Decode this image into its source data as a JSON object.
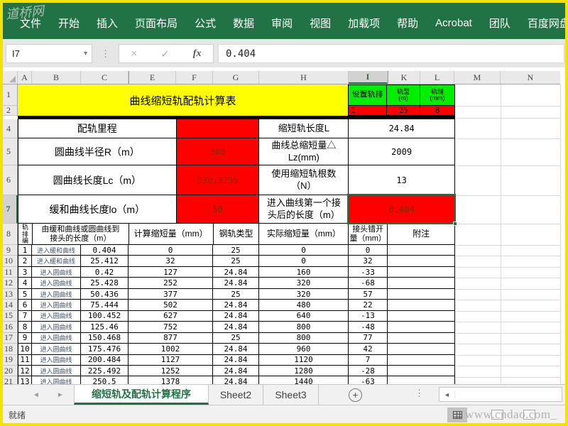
{
  "colors": {
    "excel_green": "#217346",
    "fill_green": "#00EE00",
    "fill_red": "#FF0000",
    "fill_yellow": "#FFFF00",
    "red_cell_text": "#7B2D00"
  },
  "watermarks": {
    "top_left": "道桥网",
    "bottom_right": "www.cndao.com_"
  },
  "menu": {
    "items": [
      "文件",
      "开始",
      "插入",
      "页面布局",
      "公式",
      "数据",
      "审阅",
      "视图",
      "加载项",
      "帮助",
      "Acrobat",
      "团队",
      "百度网盘"
    ]
  },
  "formula_bar": {
    "name_box": "I7",
    "value": "0.404"
  },
  "icons": {
    "dropdown": "▾",
    "cancel": "×",
    "enter": "✓",
    "fx": "fx",
    "dots": "⋮",
    "tab_prev": "◄",
    "tab_next": "►",
    "add_sheet": "+",
    "scroll_left": "◄"
  },
  "sheet": {
    "column_headers": [
      "A",
      "B",
      "C",
      "E",
      "F",
      "G",
      "H",
      "I",
      "K",
      "L",
      "M",
      "N"
    ],
    "row_headers": [
      "1",
      "2",
      "4",
      "5",
      "6",
      "7",
      "8"
    ],
    "selected_cell": "I7",
    "title": "曲线缩短轨配轨计算表",
    "settings": {
      "headers": [
        "设置轨排",
        "轨型\n(m)",
        "轨缝\n(mm)"
      ],
      "values": [
        "1",
        "25",
        "8"
      ]
    },
    "info_rows": [
      {
        "label_l": "配轨里程",
        "value_l": "",
        "label_r": "缩短轨长度L",
        "value_r": "24.84"
      },
      {
        "label_l": "圆曲线半径R（m）",
        "value_l": "300",
        "label_r": "曲线总缩短量△\nLz(mm)",
        "value_r": "2009"
      },
      {
        "label_l": "圆曲线长度Lc（m）",
        "value_l": "330.3255",
        "label_r": "使用缩短轨根数\n（N）",
        "value_r": "13"
      },
      {
        "label_l": "缓和曲线长度lo（m）",
        "value_l": "50",
        "label_r": "进入曲线第一个接\n头后的长度（m）",
        "value_r": "0.404"
      }
    ],
    "table": {
      "headers": {
        "rank": "轨排编号",
        "length": "由缓和曲线或圆曲线到\n接头的长度（m）",
        "calc": "计算缩短量（mm）",
        "rail": "钢轨类型",
        "actual": "实际缩短量（mm）",
        "stagger": "接头错开\n量（mm）",
        "note": "附注"
      },
      "rows": [
        {
          "row": "9",
          "rank": "1",
          "entry": "进入缓和曲线",
          "length": "0.404",
          "calc": "0",
          "rail": "25",
          "actual": "0",
          "stagger": "0"
        },
        {
          "row": "10",
          "rank": "2",
          "entry": "进入缓和曲线",
          "length": "25.412",
          "calc": "32",
          "rail": "25",
          "actual": "0",
          "stagger": "32"
        },
        {
          "row": "11",
          "rank": "3",
          "entry": "进入圆曲线",
          "length": "0.42",
          "calc": "127",
          "rail": "24.84",
          "actual": "160",
          "stagger": "-33"
        },
        {
          "row": "12",
          "rank": "4",
          "entry": "进入圆曲线",
          "length": "25.428",
          "calc": "252",
          "rail": "24.84",
          "actual": "320",
          "stagger": "-68"
        },
        {
          "row": "13",
          "rank": "5",
          "entry": "进入圆曲线",
          "length": "50.436",
          "calc": "377",
          "rail": "25",
          "actual": "320",
          "stagger": "57"
        },
        {
          "row": "14",
          "rank": "6",
          "entry": "进入圆曲线",
          "length": "75.444",
          "calc": "502",
          "rail": "24.84",
          "actual": "480",
          "stagger": "22"
        },
        {
          "row": "15",
          "rank": "7",
          "entry": "进入圆曲线",
          "length": "100.452",
          "calc": "627",
          "rail": "24.84",
          "actual": "640",
          "stagger": "-13"
        },
        {
          "row": "16",
          "rank": "8",
          "entry": "进入圆曲线",
          "length": "125.46",
          "calc": "752",
          "rail": "24.84",
          "actual": "800",
          "stagger": "-48"
        },
        {
          "row": "17",
          "rank": "9",
          "entry": "进入圆曲线",
          "length": "150.468",
          "calc": "877",
          "rail": "25",
          "actual": "800",
          "stagger": "77"
        },
        {
          "row": "18",
          "rank": "10",
          "entry": "进入圆曲线",
          "length": "175.476",
          "calc": "1002",
          "rail": "24.84",
          "actual": "960",
          "stagger": "42"
        },
        {
          "row": "19",
          "rank": "11",
          "entry": "进入圆曲线",
          "length": "200.484",
          "calc": "1127",
          "rail": "24.84",
          "actual": "1120",
          "stagger": "7"
        },
        {
          "row": "20",
          "rank": "12",
          "entry": "进入圆曲线",
          "length": "225.492",
          "calc": "1252",
          "rail": "24.84",
          "actual": "1280",
          "stagger": "-28"
        },
        {
          "row": "21",
          "rank": "13",
          "entry": "进入圆曲线",
          "length": "250.5",
          "calc": "1378",
          "rail": "24.84",
          "actual": "1440",
          "stagger": "-63"
        }
      ]
    }
  },
  "tabs": {
    "active": "缩短轨及配轨计算程序",
    "others": [
      "Sheet2",
      "Sheet3"
    ]
  },
  "status": {
    "ready": "就绪"
  }
}
